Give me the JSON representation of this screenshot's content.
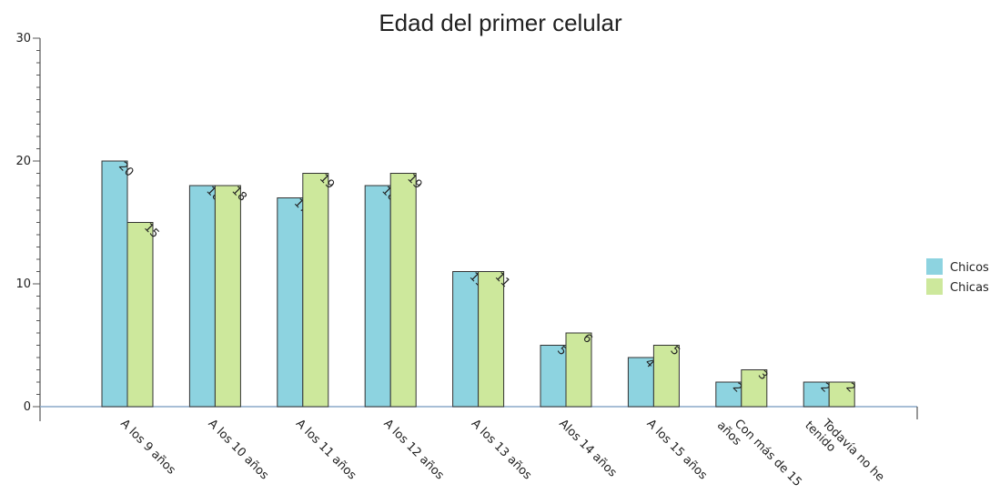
{
  "chart_data": {
    "type": "bar",
    "title": "Edad del primer celular",
    "xlabel": "",
    "ylabel": "",
    "ylim": [
      0,
      30
    ],
    "yticks": [
      0,
      10,
      20,
      30
    ],
    "grid": false,
    "legend_position": "right",
    "categories": [
      "A los 9 años",
      "A los 10 años",
      "A los 11 años",
      "A los 12 años",
      "A los 13 años",
      "Alos 14 años",
      "A los 15 años",
      "Con más de 15 años",
      "Todavía no he tenido"
    ],
    "series": [
      {
        "name": "Chicos",
        "color": "#8dd3e0",
        "values": [
          20,
          18,
          17,
          18,
          11,
          5,
          4,
          2,
          2
        ]
      },
      {
        "name": "Chicas",
        "color": "#cde89c",
        "values": [
          15,
          18,
          19,
          19,
          11,
          6,
          5,
          3,
          2
        ]
      }
    ]
  }
}
